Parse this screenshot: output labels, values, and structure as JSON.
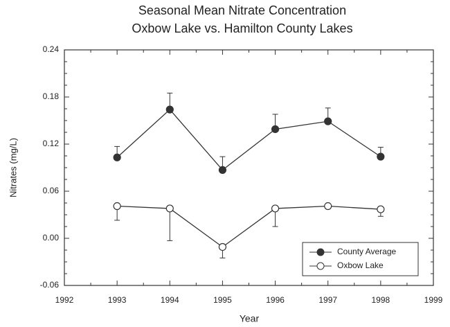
{
  "chart_data": {
    "type": "line",
    "title": "Seasonal Mean Nitrate Concentration",
    "subtitle": "Oxbow Lake vs. Hamilton County Lakes",
    "xlabel": "Year",
    "ylabel": "Nitrates (mg/L)",
    "x": [
      1993,
      1994,
      1995,
      1996,
      1997,
      1998
    ],
    "series": [
      {
        "name": "County Average",
        "color": "#333333",
        "marker_fill": "#333333",
        "error_direction": "up",
        "values": [
          0.103,
          0.164,
          0.087,
          0.139,
          0.149,
          0.104
        ],
        "errors": [
          0.014,
          0.021,
          0.017,
          0.019,
          0.017,
          0.012
        ]
      },
      {
        "name": "Oxbow Lake",
        "color": "#333333",
        "marker_fill": "#ffffff",
        "error_direction": "down",
        "values": [
          0.041,
          0.038,
          -0.011,
          0.038,
          0.041,
          0.037
        ],
        "errors": [
          0.018,
          0.041,
          0.014,
          0.023,
          0.003,
          0.009
        ]
      }
    ],
    "xlim": [
      1992,
      1999
    ],
    "xticks": [
      1992,
      1993,
      1994,
      1995,
      1996,
      1997,
      1998,
      1999
    ],
    "ylim": [
      -0.06,
      0.24
    ],
    "yticks": [
      -0.06,
      {
        "value": 0,
        "label": "0.00"
      },
      0.06,
      0.12,
      0.18,
      0.24
    ],
    "legend": "lower right"
  }
}
